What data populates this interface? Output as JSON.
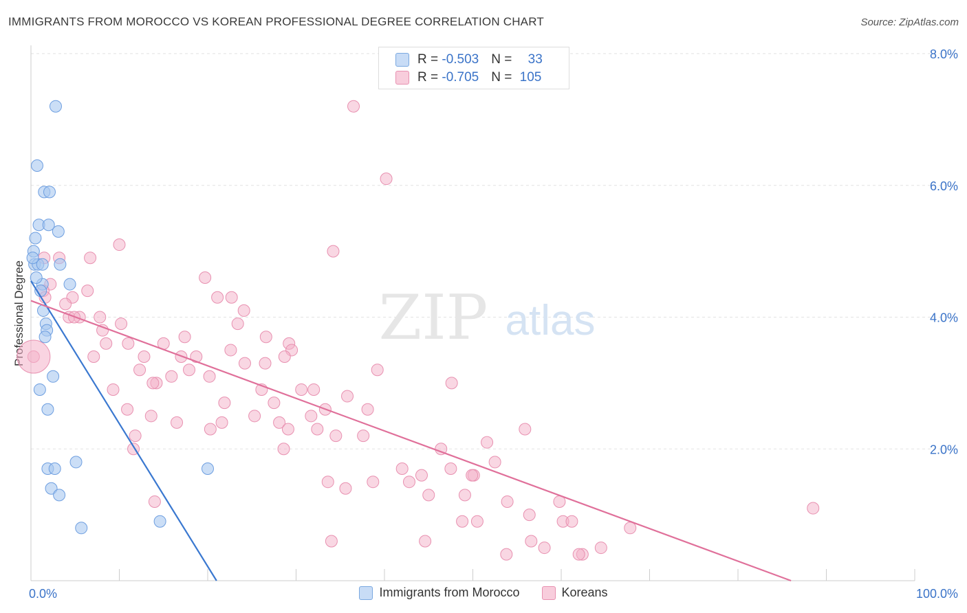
{
  "title": "IMMIGRANTS FROM MOROCCO VS KOREAN PROFESSIONAL DEGREE CORRELATION CHART",
  "source": "Source: ZipAtlas.com",
  "watermark": {
    "zip": "ZIP",
    "atlas": "atlas"
  },
  "legend_stats": [
    {
      "r_label": "R = ",
      "r_value": "-0.503",
      "n_label": "N = ",
      "n_value": "33",
      "color": "#a8c8f0"
    },
    {
      "r_label": "R = ",
      "r_value": "-0.705",
      "n_label": "N = ",
      "n_value": "105",
      "color": "#f4b0c8"
    }
  ],
  "colors": {
    "blue_fill": "#a8c8f0",
    "blue_line": "#3a78d0",
    "pink_fill": "#f4b0c8",
    "pink_line": "#e0709a",
    "axis_text": "#3a73c8"
  },
  "chart_data": {
    "type": "scatter",
    "title": "IMMIGRANTS FROM MOROCCO VS KOREAN PROFESSIONAL DEGREE CORRELATION CHART",
    "xlabel": "",
    "ylabel": "Professional Degree",
    "xlim": [
      0,
      100
    ],
    "ylim": [
      0,
      8
    ],
    "x_tick_labels": [
      "0.0%",
      "100.0%"
    ],
    "y_ticks": [
      2,
      4,
      6,
      8
    ],
    "y_tick_labels": [
      "2.0%",
      "4.0%",
      "6.0%",
      "8.0%"
    ],
    "grid": true,
    "legend": "bottom-center",
    "series": [
      {
        "name": "Immigrants from Morocco",
        "color": "#a8c8f0",
        "points": [
          [
            2.8,
            7.2
          ],
          [
            0.7,
            6.3
          ],
          [
            1.5,
            5.9
          ],
          [
            2.1,
            5.9
          ],
          [
            0.9,
            5.4
          ],
          [
            2.0,
            5.4
          ],
          [
            3.1,
            5.3
          ],
          [
            0.5,
            5.2
          ],
          [
            0.3,
            5.0
          ],
          [
            0.4,
            4.8
          ],
          [
            0.8,
            4.8
          ],
          [
            1.3,
            4.8
          ],
          [
            3.3,
            4.8
          ],
          [
            1.3,
            4.5
          ],
          [
            4.4,
            4.5
          ],
          [
            1.1,
            4.4
          ],
          [
            1.4,
            4.1
          ],
          [
            1.7,
            3.9
          ],
          [
            1.8,
            3.8
          ],
          [
            1.6,
            3.7
          ],
          [
            2.5,
            3.1
          ],
          [
            1.0,
            2.9
          ],
          [
            1.9,
            2.6
          ],
          [
            5.1,
            1.8
          ],
          [
            1.9,
            1.7
          ],
          [
            2.7,
            1.7
          ],
          [
            20.0,
            1.7
          ],
          [
            2.3,
            1.4
          ],
          [
            3.2,
            1.3
          ],
          [
            14.6,
            0.9
          ],
          [
            5.7,
            0.8
          ],
          [
            0.2,
            4.9
          ],
          [
            0.6,
            4.6
          ]
        ],
        "trend": {
          "x0": 0,
          "y0": 4.55,
          "x1": 21,
          "y1": 0
        }
      },
      {
        "name": "Koreans",
        "color": "#f4b0c8",
        "points": [
          [
            36.5,
            7.2
          ],
          [
            40.2,
            6.1
          ],
          [
            10.0,
            5.1
          ],
          [
            3.2,
            4.9
          ],
          [
            6.7,
            4.9
          ],
          [
            34.2,
            5.0
          ],
          [
            1.5,
            4.9
          ],
          [
            19.7,
            4.6
          ],
          [
            2.2,
            4.5
          ],
          [
            1.4,
            4.4
          ],
          [
            6.4,
            4.4
          ],
          [
            1.6,
            4.3
          ],
          [
            4.7,
            4.3
          ],
          [
            3.9,
            4.2
          ],
          [
            21.1,
            4.3
          ],
          [
            22.7,
            4.3
          ],
          [
            24.1,
            4.1
          ],
          [
            4.3,
            4.0
          ],
          [
            5.5,
            4.0
          ],
          [
            7.8,
            4.0
          ],
          [
            4.9,
            4.0
          ],
          [
            10.2,
            3.9
          ],
          [
            23.4,
            3.9
          ],
          [
            8.1,
            3.8
          ],
          [
            17.4,
            3.7
          ],
          [
            26.6,
            3.7
          ],
          [
            8.5,
            3.6
          ],
          [
            11.0,
            3.6
          ],
          [
            15.0,
            3.6
          ],
          [
            29.2,
            3.6
          ],
          [
            22.6,
            3.5
          ],
          [
            29.5,
            3.5
          ],
          [
            7.1,
            3.4
          ],
          [
            12.8,
            3.4
          ],
          [
            17.0,
            3.4
          ],
          [
            18.7,
            3.4
          ],
          [
            28.7,
            3.4
          ],
          [
            0.3,
            3.4
          ],
          [
            24.2,
            3.3
          ],
          [
            26.5,
            3.3
          ],
          [
            12.3,
            3.2
          ],
          [
            17.9,
            3.2
          ],
          [
            39.2,
            3.2
          ],
          [
            15.9,
            3.1
          ],
          [
            20.2,
            3.1
          ],
          [
            14.2,
            3.0
          ],
          [
            47.6,
            3.0
          ],
          [
            9.3,
            2.9
          ],
          [
            13.8,
            3.0
          ],
          [
            26.1,
            2.9
          ],
          [
            30.6,
            2.9
          ],
          [
            32.0,
            2.9
          ],
          [
            35.8,
            2.8
          ],
          [
            21.9,
            2.7
          ],
          [
            27.5,
            2.7
          ],
          [
            33.3,
            2.6
          ],
          [
            38.1,
            2.6
          ],
          [
            10.9,
            2.6
          ],
          [
            13.6,
            2.5
          ],
          [
            25.3,
            2.5
          ],
          [
            31.7,
            2.5
          ],
          [
            16.5,
            2.4
          ],
          [
            21.6,
            2.4
          ],
          [
            28.1,
            2.4
          ],
          [
            20.3,
            2.3
          ],
          [
            29.1,
            2.3
          ],
          [
            32.4,
            2.3
          ],
          [
            34.5,
            2.2
          ],
          [
            37.6,
            2.2
          ],
          [
            55.9,
            2.3
          ],
          [
            11.8,
            2.2
          ],
          [
            11.6,
            2.0
          ],
          [
            28.6,
            2.0
          ],
          [
            46.4,
            2.0
          ],
          [
            51.6,
            2.1
          ],
          [
            52.5,
            1.8
          ],
          [
            42.0,
            1.7
          ],
          [
            44.2,
            1.6
          ],
          [
            47.5,
            1.7
          ],
          [
            50.1,
            1.6
          ],
          [
            38.7,
            1.5
          ],
          [
            49.9,
            1.6
          ],
          [
            33.6,
            1.5
          ],
          [
            35.6,
            1.4
          ],
          [
            42.8,
            1.5
          ],
          [
            49.1,
            1.3
          ],
          [
            53.9,
            1.2
          ],
          [
            59.8,
            1.2
          ],
          [
            88.5,
            1.1
          ],
          [
            56.4,
            1.0
          ],
          [
            60.2,
            0.9
          ],
          [
            48.8,
            0.9
          ],
          [
            56.6,
            0.6
          ],
          [
            61.2,
            0.9
          ],
          [
            67.8,
            0.8
          ],
          [
            14.0,
            1.2
          ],
          [
            44.6,
            0.6
          ],
          [
            58.1,
            0.5
          ],
          [
            53.8,
            0.4
          ],
          [
            62.4,
            0.4
          ],
          [
            64.5,
            0.5
          ],
          [
            62.0,
            0.4
          ],
          [
            45.0,
            1.3
          ],
          [
            50.5,
            0.9
          ],
          [
            34.0,
            0.6
          ]
        ],
        "trend": {
          "x0": 0,
          "y0": 4.25,
          "x1": 86,
          "y1": 0
        }
      }
    ]
  }
}
